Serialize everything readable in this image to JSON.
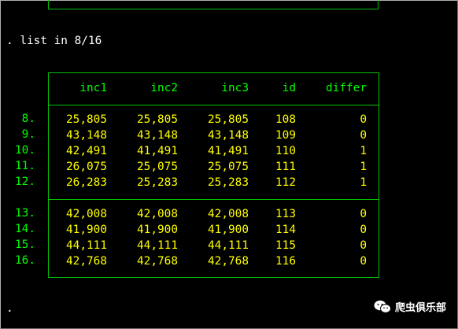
{
  "command": ". list in 8/16",
  "prompt_end": ".",
  "columns": [
    "inc1",
    "inc2",
    "inc3",
    "id",
    "differ"
  ],
  "rows": [
    {
      "n": "8.",
      "inc1": "25,805",
      "inc2": "25,805",
      "inc3": "25,805",
      "id": "108",
      "differ": "0"
    },
    {
      "n": "9.",
      "inc1": "43,148",
      "inc2": "43,148",
      "inc3": "43,148",
      "id": "109",
      "differ": "0"
    },
    {
      "n": "10.",
      "inc1": "42,491",
      "inc2": "41,491",
      "inc3": "41,491",
      "id": "110",
      "differ": "1"
    },
    {
      "n": "11.",
      "inc1": "26,075",
      "inc2": "25,075",
      "inc3": "25,075",
      "id": "111",
      "differ": "1"
    },
    {
      "n": "12.",
      "inc1": "26,283",
      "inc2": "25,283",
      "inc3": "25,283",
      "id": "112",
      "differ": "1"
    },
    {
      "n": "13.",
      "inc1": "42,008",
      "inc2": "42,008",
      "inc3": "42,008",
      "id": "113",
      "differ": "0"
    },
    {
      "n": "14.",
      "inc1": "41,900",
      "inc2": "41,900",
      "inc3": "41,900",
      "id": "114",
      "differ": "0"
    },
    {
      "n": "15.",
      "inc1": "44,111",
      "inc2": "44,111",
      "inc3": "44,111",
      "id": "115",
      "differ": "0"
    },
    {
      "n": "16.",
      "inc1": "42,768",
      "inc2": "42,768",
      "inc3": "42,768",
      "id": "116",
      "differ": "0"
    }
  ],
  "watermark": {
    "icon": "wechat-icon",
    "text": "爬虫俱乐部"
  },
  "colors": {
    "background": "#000000",
    "border": "#00c000",
    "header": "#00ff00",
    "value": "#ffff00",
    "command": "#ffffff"
  }
}
